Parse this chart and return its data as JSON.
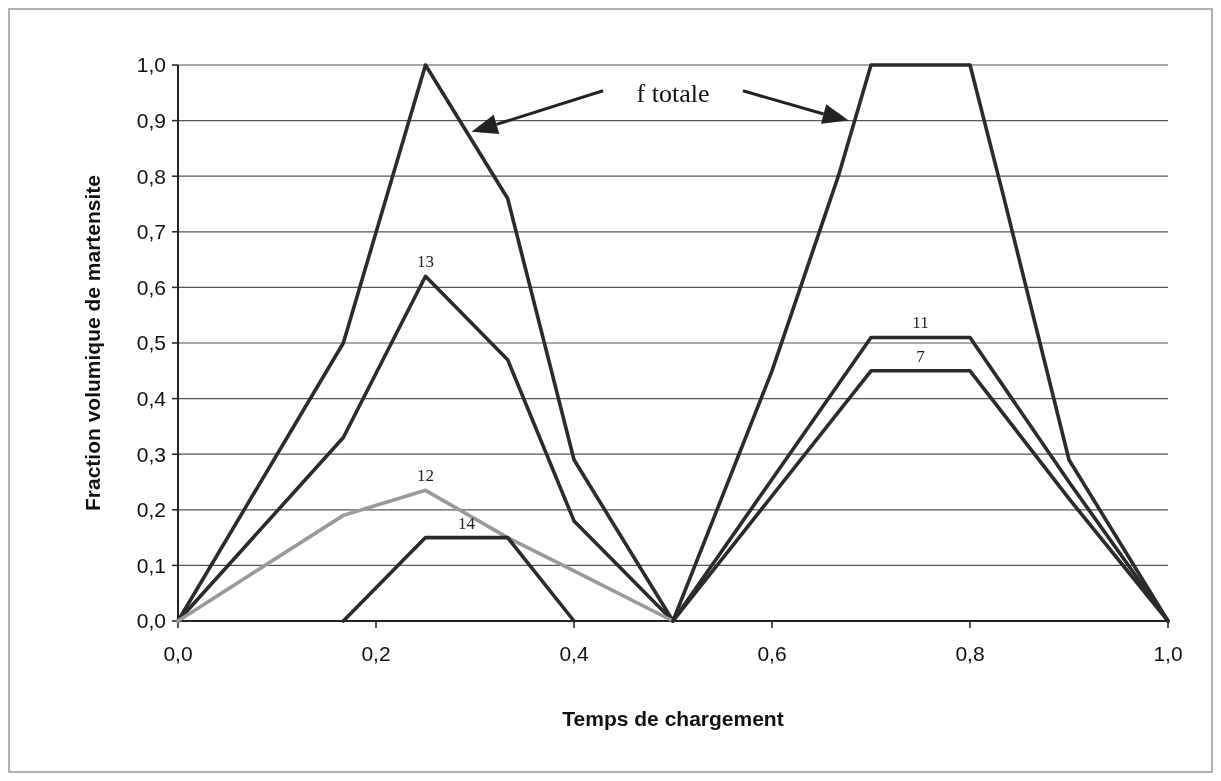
{
  "chart_data": {
    "type": "line",
    "xlabel": "Temps de chargement",
    "ylabel": "Fraction volumique de martensite",
    "xlim": [
      0,
      1
    ],
    "ylim": [
      0,
      1
    ],
    "xticks": [
      {
        "value": 0,
        "label": "0,0"
      },
      {
        "value": 0.2,
        "label": "0,2"
      },
      {
        "value": 0.4,
        "label": "0,4"
      },
      {
        "value": 0.6,
        "label": "0,6"
      },
      {
        "value": 0.8,
        "label": "0,8"
      },
      {
        "value": 1,
        "label": "1,0"
      }
    ],
    "yticks": [
      {
        "value": 0,
        "label": "0,0"
      },
      {
        "value": 0.1,
        "label": "0,1"
      },
      {
        "value": 0.2,
        "label": "0,2"
      },
      {
        "value": 0.3,
        "label": "0,3"
      },
      {
        "value": 0.4,
        "label": "0,4"
      },
      {
        "value": 0.5,
        "label": "0,5"
      },
      {
        "value": 0.6,
        "label": "0,6"
      },
      {
        "value": 0.7,
        "label": "0,7"
      },
      {
        "value": 0.8,
        "label": "0,8"
      },
      {
        "value": 0.9,
        "label": "0,9"
      },
      {
        "value": 1,
        "label": "1,0"
      }
    ],
    "grid": "y",
    "marker": "none",
    "line_style": "solid",
    "annotations": [
      "f totale"
    ],
    "series": [
      {
        "color": "#2b2b2b",
        "x": [
          0,
          0.167,
          0.25,
          0.333,
          0.4,
          0.5,
          0.6,
          0.667,
          0.7,
          0.8,
          0.833,
          0.9,
          1
        ],
        "values": [
          0,
          0.5,
          1,
          0.76,
          0.29,
          0,
          0.45,
          0.8,
          1,
          1,
          0.77,
          0.29,
          0
        ]
      },
      {
        "name": "13",
        "color": "#2b2b2b",
        "x": [
          0,
          0.167,
          0.25,
          0.333,
          0.4,
          0.5
        ],
        "values": [
          0,
          0.33,
          0.62,
          0.47,
          0.18,
          0
        ]
      },
      {
        "name": "12",
        "color": "#9a9a9a",
        "x": [
          0,
          0.167,
          0.25,
          0.333,
          0.4,
          0.5
        ],
        "values": [
          0,
          0.19,
          0.235,
          0.15,
          0.09,
          0
        ]
      },
      {
        "name": "14",
        "color": "#2b2b2b",
        "x": [
          0.167,
          0.25,
          0.333,
          0.4
        ],
        "values": [
          0,
          0.15,
          0.15,
          0
        ]
      },
      {
        "name": "11",
        "color": "#2b2b2b",
        "x": [
          0.5,
          0.7,
          0.8,
          0.9,
          1
        ],
        "values": [
          0,
          0.51,
          0.51,
          0.25,
          0
        ]
      },
      {
        "name": "7",
        "color": "#2b2b2b",
        "x": [
          0.5,
          0.7,
          0.8,
          0.9,
          1
        ],
        "values": [
          0,
          0.45,
          0.45,
          0.22,
          0
        ]
      }
    ]
  }
}
